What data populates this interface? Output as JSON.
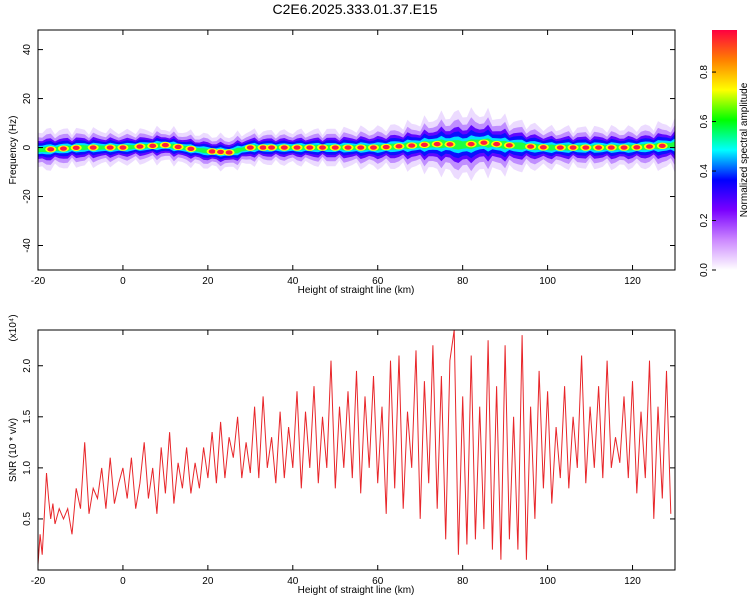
{
  "figure_title": "C2E6.2025.333.01.37.E15",
  "colors": {
    "snr_line": "#e8262a",
    "background": "#ffffff",
    "axis": "#000000"
  },
  "chart_data": [
    {
      "type": "heatmap",
      "xlabel": "Height of straight line (km)",
      "ylabel": "Frequency (Hz)",
      "xlim": [
        -20,
        130
      ],
      "ylim": [
        -50,
        48
      ],
      "x_ticks": [
        -20,
        0,
        20,
        40,
        60,
        80,
        100,
        120
      ],
      "y_ticks": [
        -40,
        -20,
        0,
        20,
        40
      ],
      "colorbar": {
        "label": "Normalized spectral amplitude",
        "range": [
          0.0,
          0.97
        ],
        "ticks": [
          0.0,
          0.2,
          0.4,
          0.6,
          0.8
        ],
        "tick_labels": [
          "0.0",
          "0.2",
          "0.4",
          "0.6",
          "0.8"
        ],
        "colormap": [
          "#ffffff",
          "#cc88ff",
          "#7a00ff",
          "#0000ff",
          "#00ffff",
          "#00ff00",
          "#ffff00",
          "#ff8000",
          "#ff0040"
        ]
      },
      "band": {
        "center_hz": [
          [
            -20,
            -1
          ],
          [
            -10,
            0
          ],
          [
            0,
            0
          ],
          [
            10,
            1
          ],
          [
            20,
            -1.5
          ],
          [
            25,
            -2
          ],
          [
            30,
            0
          ],
          [
            40,
            0
          ],
          [
            50,
            0
          ],
          [
            60,
            0
          ],
          [
            70,
            1
          ],
          [
            75,
            1.5
          ],
          [
            80,
            1
          ],
          [
            85,
            2
          ],
          [
            90,
            1
          ],
          [
            100,
            0
          ],
          [
            110,
            0
          ],
          [
            120,
            0
          ],
          [
            130,
            1
          ]
        ],
        "halfwidth_hz": [
          [
            -20,
            3
          ],
          [
            0,
            2.5
          ],
          [
            20,
            2.5
          ],
          [
            40,
            2.5
          ],
          [
            60,
            3
          ],
          [
            70,
            3.5
          ],
          [
            80,
            5
          ],
          [
            90,
            4
          ],
          [
            100,
            3
          ],
          [
            120,
            3
          ],
          [
            130,
            3.5
          ]
        ],
        "peak_km": [
          -17,
          -14,
          -11,
          -7,
          -3,
          0,
          4,
          7,
          10,
          13,
          16,
          21,
          23,
          25,
          30,
          33,
          35,
          38,
          41,
          44,
          47,
          50,
          53,
          56,
          59,
          62,
          65,
          68,
          71,
          74,
          77,
          82,
          85,
          88,
          91,
          96,
          99,
          103,
          106,
          109,
          112,
          115,
          118,
          121,
          124,
          127
        ]
      }
    },
    {
      "type": "line",
      "xlabel": "Height of straight line (km)",
      "ylabel": "SNR (10 * v/v)",
      "y_multiplier": "(x10⁴)",
      "xlim": [
        -20,
        130
      ],
      "ylim": [
        0,
        2.35
      ],
      "x_ticks": [
        -20,
        0,
        20,
        40,
        60,
        80,
        100,
        120
      ],
      "y_ticks": [
        0.5,
        1.0,
        1.5,
        2.0
      ],
      "y_tick_labels": [
        "0.5",
        "1.0",
        "1.5",
        "2.0"
      ],
      "series": [
        {
          "x": [
            -20,
            -19.5,
            -19,
            -18.5,
            -18,
            -17.5,
            -17,
            -16.5,
            -16,
            -15,
            -14,
            -13,
            -12,
            -11,
            -10,
            -9,
            -8,
            -7,
            -6,
            -5,
            -4,
            -3,
            -2,
            -1,
            0,
            1,
            2,
            3,
            4,
            5,
            6,
            7,
            8,
            9,
            10,
            11,
            12,
            13,
            14,
            15,
            16,
            17,
            18,
            19,
            20,
            21,
            22,
            23,
            24,
            25,
            26,
            27,
            28,
            29,
            30,
            31,
            32,
            33,
            34,
            35,
            36,
            37,
            38,
            39,
            40,
            41,
            42,
            43,
            44,
            45,
            46,
            47,
            48,
            49,
            50,
            51,
            52,
            53,
            54,
            55,
            56,
            57,
            58,
            59,
            60,
            61,
            62,
            63,
            64,
            65,
            66,
            67,
            68,
            69,
            70,
            71,
            72,
            73,
            74,
            75,
            76,
            77,
            78,
            79,
            80,
            81,
            82,
            83,
            84,
            85,
            86,
            87,
            88,
            89,
            90,
            91,
            92,
            93,
            94,
            95,
            96,
            97,
            98,
            99,
            100,
            101,
            102,
            103,
            104,
            105,
            106,
            107,
            108,
            109,
            110,
            111,
            112,
            113,
            114,
            115,
            116,
            117,
            118,
            119,
            120,
            121,
            122,
            123,
            124,
            125,
            126,
            127,
            128,
            129
          ],
          "y": [
            0.05,
            0.35,
            0.15,
            0.55,
            0.95,
            0.7,
            0.5,
            0.65,
            0.45,
            0.6,
            0.5,
            0.6,
            0.35,
            0.8,
            0.6,
            1.25,
            0.55,
            0.8,
            0.7,
            1.0,
            0.6,
            1.1,
            0.65,
            0.85,
            1.0,
            0.7,
            1.1,
            0.6,
            0.85,
            1.25,
            0.7,
            1.0,
            0.55,
            1.2,
            0.75,
            1.35,
            0.65,
            1.05,
            0.8,
            1.2,
            0.75,
            1.05,
            0.8,
            1.2,
            0.9,
            1.35,
            0.85,
            1.45,
            0.9,
            1.3,
            1.1,
            1.5,
            0.9,
            1.25,
            0.95,
            1.6,
            0.9,
            1.7,
            1.0,
            1.3,
            0.85,
            1.55,
            0.9,
            1.4,
            1.0,
            1.75,
            0.8,
            1.55,
            1.0,
            1.8,
            0.85,
            1.5,
            1.0,
            2.05,
            0.8,
            1.6,
            1.0,
            1.75,
            0.9,
            1.95,
            0.75,
            1.7,
            1.0,
            1.9,
            0.85,
            1.6,
            0.55,
            2.05,
            0.8,
            2.1,
            0.6,
            1.55,
            1.0,
            2.15,
            0.5,
            1.85,
            0.85,
            2.2,
            0.6,
            1.9,
            0.3,
            2.05,
            2.4,
            0.15,
            1.7,
            0.25,
            2.1,
            0.3,
            1.6,
            0.4,
            2.25,
            0.2,
            1.8,
            0.1,
            2.2,
            0.3,
            1.5,
            0.2,
            2.3,
            0.1,
            1.6,
            0.5,
            1.95,
            0.8,
            1.75,
            0.65,
            1.4,
            0.9,
            1.8,
            0.8,
            1.5,
            1.0,
            2.1,
            0.85,
            1.6,
            1.0,
            1.8,
            0.9,
            2.05,
            1.0,
            1.3,
            1.05,
            1.7,
            0.9,
            1.85,
            0.75,
            1.55,
            0.9,
            2.05,
            0.5,
            1.6,
            0.7,
            1.95,
            0.55
          ]
        }
      ]
    }
  ]
}
